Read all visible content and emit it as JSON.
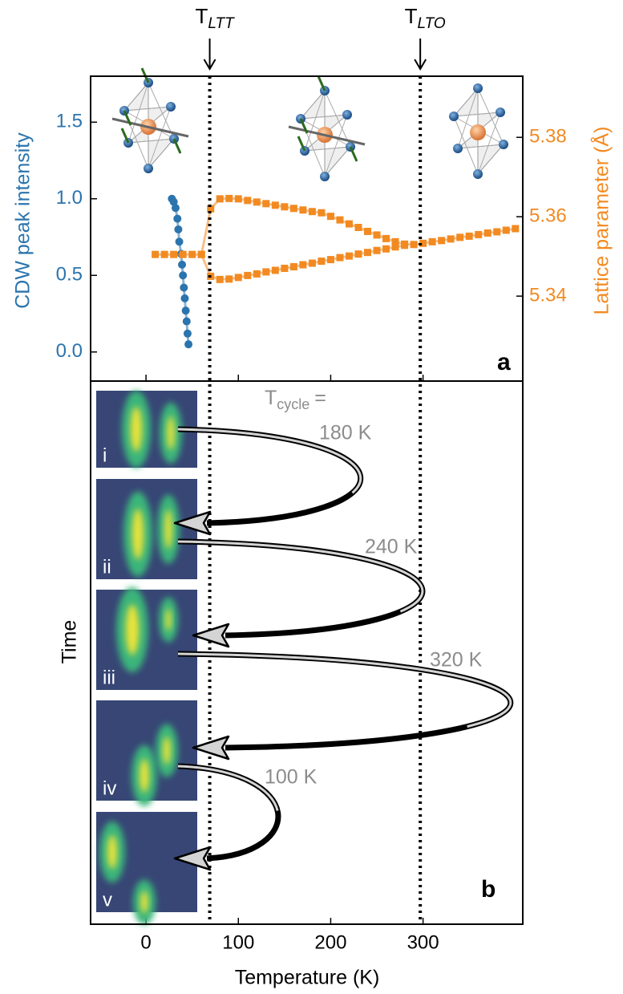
{
  "chart_data": [
    {
      "type": "line",
      "panel_label": "a",
      "ylabel": "CDW peak intensity",
      "y2label": "Lattice parameter (Å)",
      "xlim": [
        -60,
        408
      ],
      "xticks": [
        0,
        100,
        200,
        300
      ],
      "ylim": [
        -0.19,
        1.8
      ],
      "yticks": [
        {
          "value": 0,
          "label": "0.0"
        },
        0.5,
        {
          "value": 1,
          "label": "1.0"
        },
        1.5
      ],
      "y2lim": [
        5.3186,
        5.3954
      ],
      "y2ticks": [
        5.34,
        5.36,
        5.38
      ],
      "series": [
        {
          "color": "#2b74ad",
          "x": [
            28,
            30,
            32,
            34,
            35,
            36,
            38,
            39,
            40,
            41,
            42,
            43,
            44,
            45,
            46
          ],
          "values": [
            1.0,
            0.98,
            0.94,
            0.87,
            0.8,
            0.72,
            0.64,
            0.57,
            0.5,
            0.42,
            0.35,
            0.27,
            0.2,
            0.12,
            0.05
          ]
        },
        {
          "color": "#f28a22",
          "axis": "y2",
          "x": [
            10,
            20,
            30,
            40,
            50,
            60,
            70,
            80,
            90,
            100,
            110,
            120,
            130,
            140,
            150,
            160,
            170,
            180,
            190,
            200,
            210,
            220,
            230,
            240,
            250,
            260,
            270,
            280,
            290,
            300,
            310,
            320,
            330,
            340,
            350,
            360,
            370,
            380,
            390,
            400
          ],
          "values": [
            5.3505,
            5.3505,
            5.3505,
            5.3505,
            5.3505,
            5.3505,
            5.362,
            5.3645,
            5.3646,
            5.3645,
            5.3641,
            5.3637,
            5.3633,
            5.3629,
            5.3625,
            5.3621,
            5.3617,
            5.3613,
            5.361,
            5.3601,
            5.3592,
            5.3582,
            5.3573,
            5.3563,
            5.3554,
            5.3545,
            5.3537,
            5.3531,
            5.353,
            5.3533,
            5.3537,
            5.354,
            5.3544,
            5.3548,
            5.3551,
            5.3555,
            5.3559,
            5.3562,
            5.3566,
            5.357
          ]
        },
        {
          "color": "#f28a22",
          "axis": "y2",
          "x": [
            60,
            70,
            80,
            90,
            100,
            110,
            120,
            130,
            140,
            150,
            160,
            170,
            180,
            190,
            200,
            210,
            220,
            230,
            240,
            250,
            260,
            270,
            280
          ],
          "values": [
            5.3505,
            5.345,
            5.3442,
            5.3443,
            5.3447,
            5.3452,
            5.3456,
            5.3461,
            5.3465,
            5.347,
            5.3474,
            5.3479,
            5.3483,
            5.3488,
            5.3492,
            5.3497,
            5.3501,
            5.3506,
            5.351,
            5.3515,
            5.3519,
            5.3524,
            5.3528
          ]
        }
      ],
      "transitions": [
        {
          "x": 69,
          "main": "T",
          "sub": "LTT"
        },
        {
          "x": 297,
          "main": "T",
          "sub": "LTO"
        }
      ]
    },
    {
      "type": "cycles",
      "panel_label": "b",
      "ylabel": "Time",
      "xlabel": "Temperature (K)",
      "xlim": [
        -60,
        408
      ],
      "xticks": [
        0,
        100,
        200,
        300
      ],
      "cycle_title": {
        "main": "T",
        "sub": "cycle",
        "suffix": "="
      },
      "images": [
        {
          "label": "i"
        },
        {
          "label": "ii"
        },
        {
          "label": "iii"
        },
        {
          "label": "iv"
        },
        {
          "label": "v"
        }
      ],
      "cycles": [
        {
          "label": "180 K"
        },
        {
          "label": "240 K"
        },
        {
          "label": "320 K"
        },
        {
          "label": "100 K"
        }
      ]
    }
  ]
}
